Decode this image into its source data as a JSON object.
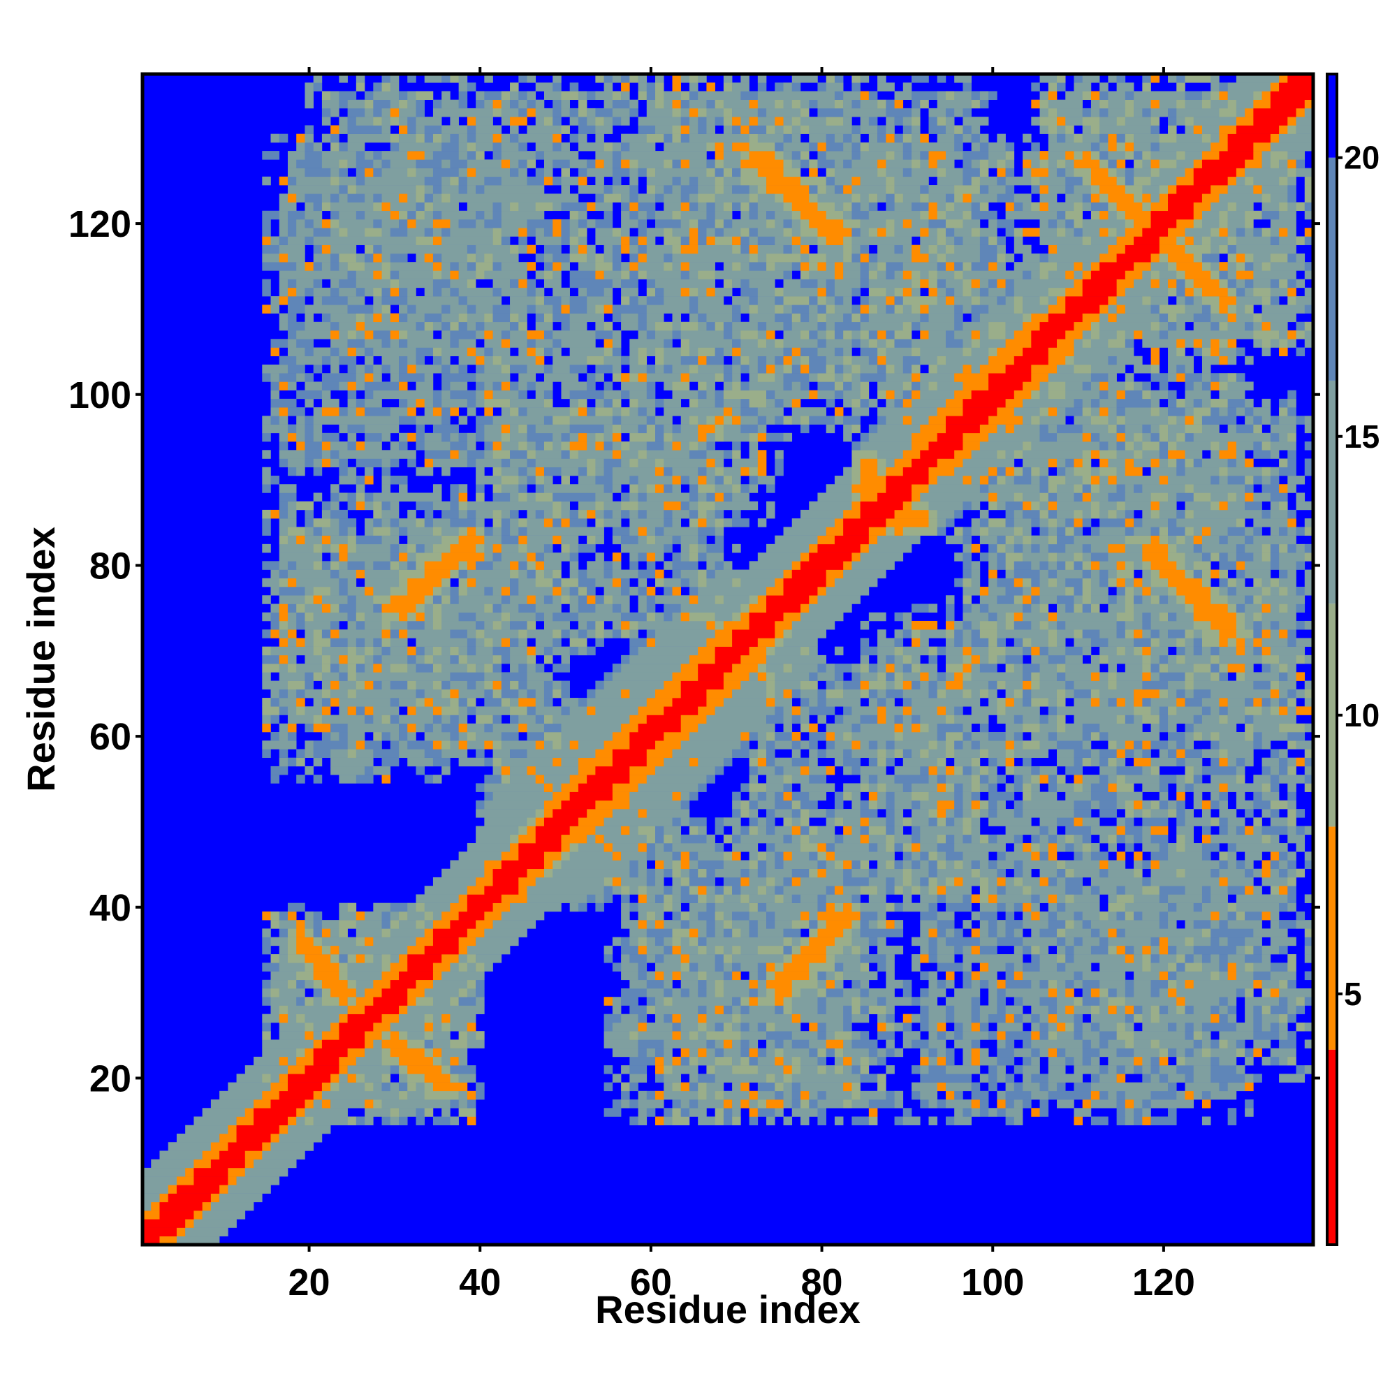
{
  "chart_data": {
    "type": "heatmap",
    "title": "",
    "xlabel": "Residue index",
    "ylabel": "Residue index",
    "n": 137,
    "xlim": [
      0.5,
      137.5
    ],
    "ylim": [
      0.5,
      137.5
    ],
    "x_ticks": [
      20,
      40,
      60,
      80,
      100,
      120
    ],
    "y_ticks": [
      20,
      40,
      60,
      80,
      100,
      120
    ],
    "x_tick_labels": [
      "20",
      "40",
      "60",
      "80",
      "100",
      "120"
    ],
    "y_tick_labels": [
      "20",
      "40",
      "60",
      "80",
      "100",
      "120"
    ],
    "colorbar": {
      "range": [
        0.5,
        21.5
      ],
      "ticks": [
        5,
        10,
        15,
        20
      ],
      "tick_labels": [
        "5",
        "10",
        "15",
        "20"
      ],
      "colors": [
        {
          "from": 0.5,
          "to": 4.0,
          "color": "#ff0000"
        },
        {
          "from": 4.0,
          "to": 8.0,
          "color": "#ff8c00"
        },
        {
          "from": 8.0,
          "to": 12.0,
          "color": "#9aae8a"
        },
        {
          "from": 12.0,
          "to": 16.0,
          "color": "#7f9fa0"
        },
        {
          "from": 16.0,
          "to": 20.0,
          "color": "#5f86b8"
        },
        {
          "from": 20.0,
          "to": 21.5,
          "color": "#0000ff"
        }
      ],
      "background_color": "#0000ff"
    },
    "grid": false,
    "legend": "colorbar-right",
    "structure": {
      "diagonal_band": {
        "description": "self-contacts along main diagonal, distance rises with |i-j|"
      },
      "blocks": [
        {
          "x": [
            20,
            60
          ],
          "y": [
            105,
            137
          ],
          "level": 12
        },
        {
          "x": [
            55,
            100
          ],
          "y": [
            100,
            137
          ],
          "level": 12
        },
        {
          "x": [
            40,
            75
          ],
          "y": [
            85,
            110
          ],
          "level": 12
        },
        {
          "x": [
            15,
            50
          ],
          "y": [
            55,
            85
          ],
          "level": 12
        },
        {
          "x": [
            40,
            65
          ],
          "y": [
            40,
            60
          ],
          "level": 13
        },
        {
          "x": [
            70,
            100
          ],
          "y": [
            40,
            70
          ],
          "level": 12
        },
        {
          "x": [
            60,
            90
          ],
          "y": [
            15,
            45
          ],
          "level": 12
        },
        {
          "x": [
            90,
            130
          ],
          "y": [
            15,
            45
          ],
          "level": 13
        },
        {
          "x": [
            95,
            137
          ],
          "y": [
            60,
            85
          ],
          "level": 12
        },
        {
          "x": [
            95,
            130
          ],
          "y": [
            85,
            110
          ],
          "level": 12
        },
        {
          "x": [
            15,
            40
          ],
          "y": [
            15,
            40
          ],
          "level": 12
        },
        {
          "x": [
            105,
            137
          ],
          "y": [
            105,
            137
          ],
          "level": 12
        }
      ],
      "antiparallel_contacts": [
        {
          "from": [
            73,
            128
          ],
          "to": [
            81,
            119
          ],
          "level": 6
        },
        {
          "from": [
            111,
            127
          ],
          "to": [
            118,
            120
          ],
          "level": 6
        },
        {
          "from": [
            120,
            118
          ],
          "to": [
            127,
            111
          ],
          "level": 6
        },
        {
          "from": [
            119,
            82
          ],
          "to": [
            127,
            72
          ],
          "level": 6
        },
        {
          "from": [
            19,
            36
          ],
          "to": [
            24,
            30
          ],
          "level": 6
        },
        {
          "from": [
            30,
            24
          ],
          "to": [
            36,
            19
          ],
          "level": 6
        },
        {
          "from": [
            75,
            31
          ],
          "to": [
            83,
            39
          ],
          "level": 6
        },
        {
          "from": [
            30,
            75
          ],
          "to": [
            39,
            83
          ],
          "level": 6
        },
        {
          "from": [
            85,
            89
          ],
          "to": [
            92,
            85
          ],
          "level": 6
        }
      ]
    }
  }
}
